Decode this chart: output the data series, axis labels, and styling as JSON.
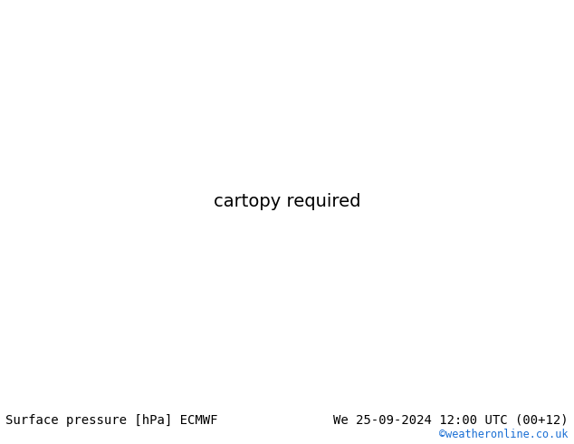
{
  "title_left": "Surface pressure [hPa] ECMWF",
  "title_right": "We 25-09-2024 12:00 UTC (00+12)",
  "credit": "©weatheronline.co.uk",
  "ocean_color": "#d4d8e0",
  "land_color": "#c8e8b0",
  "border_color": "#a0a0a0",
  "coastline_color": "#808080",
  "footer_bg": "#d8d8d8",
  "title_font_size": 10,
  "credit_color": "#1a6fd4",
  "text_color_left": "#000000",
  "isobar_black_color": "#000000",
  "isobar_blue_color": "#0000cc",
  "isobar_red_color": "#cc0000",
  "extent": [
    -22,
    65,
    -42,
    42
  ],
  "figsize": [
    6.34,
    4.9
  ],
  "dpi": 100
}
